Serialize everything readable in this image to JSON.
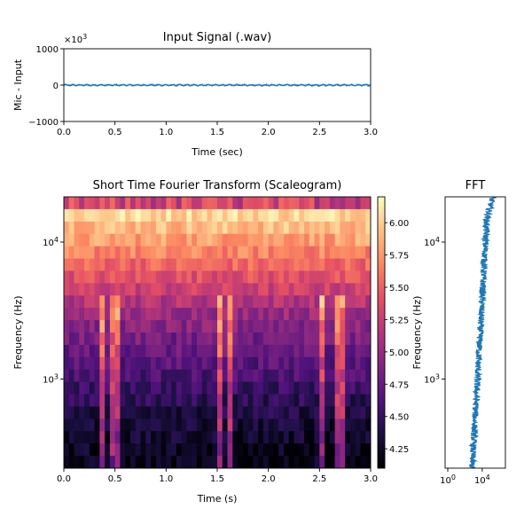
{
  "chart_data": [
    {
      "type": "line",
      "title": "Input Signal (.wav)",
      "xlabel": "Time (sec)",
      "ylabel": "Mic - Input",
      "y_multiplier": "×10",
      "y_multiplier_exp": "3",
      "xlim": [
        0,
        3
      ],
      "ylim": [
        -1000,
        1000
      ],
      "xticks": [
        "0.0",
        "0.5",
        "1.0",
        "1.5",
        "2.0",
        "2.5",
        "3.0"
      ],
      "yticks": [
        "1000",
        "0",
        "−1000"
      ],
      "line_color": "#1f77b4",
      "series_amplitude": 12
    },
    {
      "type": "heatmap",
      "title": "Short Time Fourier Transform (Scaleogram)",
      "xlabel": "Time (s)",
      "ylabel": "Frequency (Hz)",
      "xlim": [
        0,
        3
      ],
      "ylim_log10": [
        2.35,
        4.33
      ],
      "xticks": [
        "0.0",
        "0.5",
        "1.0",
        "1.5",
        "2.0",
        "2.5",
        "3.0"
      ],
      "ytick_base": "10",
      "yticks_exp": [
        "4",
        "3"
      ],
      "colormap": "magma",
      "clim": [
        4.1,
        6.2
      ],
      "colorbar_ticks": [
        "6.00",
        "5.75",
        "5.50",
        "5.25",
        "5.00",
        "4.75",
        "4.50",
        "4.25"
      ],
      "time_bins": 60,
      "freq_bins": 22,
      "bright_times": [
        0.38,
        0.5,
        1.52,
        1.62,
        2.52,
        2.7
      ]
    },
    {
      "type": "line",
      "title": "FFT",
      "ylabel": "Frequency (Hz)",
      "x_scale": "log",
      "y_scale": "log",
      "xtick_base": "10",
      "xticks_exp": [
        "0",
        "4"
      ],
      "yticks_exp": [
        "4",
        "3"
      ],
      "line_color": "#1f77b4"
    }
  ]
}
